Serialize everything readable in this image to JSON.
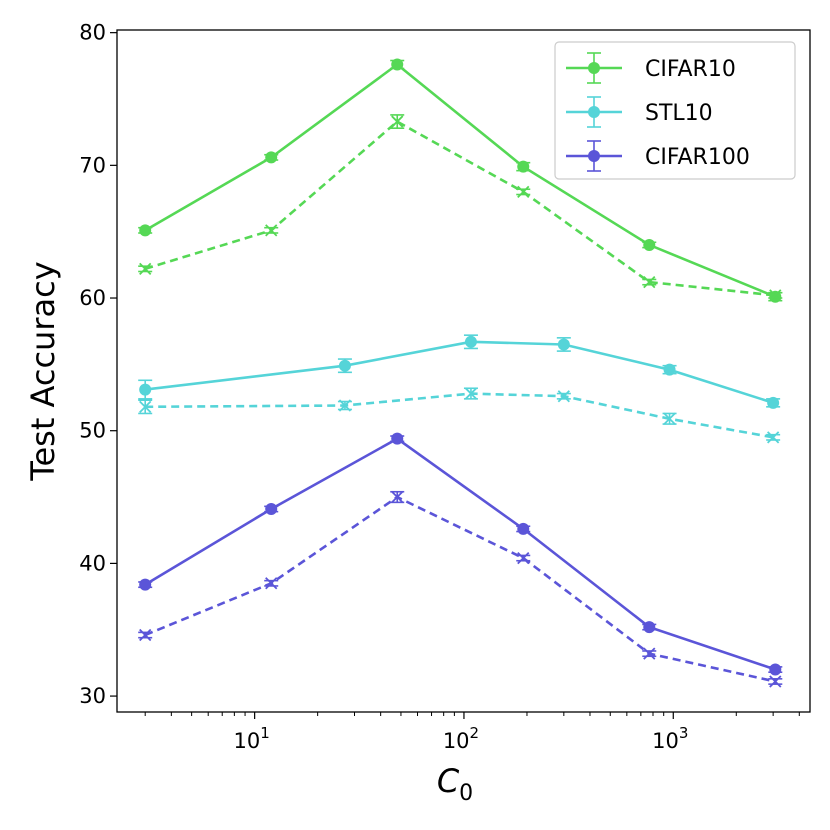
{
  "chart_data": {
    "type": "line",
    "xscale": "log",
    "xlim": [
      2.2,
      4500
    ],
    "ylim": [
      28.8,
      80.2
    ],
    "xlabel_main": "C",
    "xlabel_sub": "0",
    "ylabel": "Test Accuracy",
    "grid": false,
    "legend_position": "top-right",
    "x_ticks": [
      {
        "value": 10,
        "exp": "1"
      },
      {
        "value": 100,
        "exp": "2"
      },
      {
        "value": 1000,
        "exp": "3"
      }
    ],
    "x_tick_base": "10",
    "y_ticks": [
      30,
      40,
      50,
      60,
      70,
      80
    ],
    "series": [
      {
        "name": "CIFAR10",
        "color": "#55d855",
        "style": "solid",
        "marker": "circle",
        "x": [
          3,
          12,
          48,
          192,
          768,
          3072
        ],
        "y": [
          65.1,
          70.6,
          77.6,
          69.9,
          64.0,
          60.1
        ],
        "err": [
          0.2,
          0.2,
          0.3,
          0.3,
          0.2,
          0.3
        ]
      },
      {
        "name": "CIFAR10 (dashed)",
        "color": "#55d855",
        "style": "dashed",
        "marker": "x",
        "x": [
          3,
          12,
          48,
          192,
          768,
          3072
        ],
        "y": [
          62.2,
          65.1,
          73.3,
          68.0,
          61.2,
          60.2
        ],
        "err": [
          0.2,
          0.2,
          0.5,
          0.2,
          0.2,
          0.2
        ]
      },
      {
        "name": "STL10",
        "color": "#55d4d8",
        "style": "solid",
        "marker": "circle",
        "x": [
          3,
          27,
          108,
          300,
          960,
          3000
        ],
        "y": [
          53.1,
          54.9,
          56.7,
          56.5,
          54.6,
          52.1
        ],
        "err": [
          0.7,
          0.5,
          0.5,
          0.5,
          0.3,
          0.3
        ]
      },
      {
        "name": "STL10 (dashed)",
        "color": "#55d4d8",
        "style": "dashed",
        "marker": "x",
        "x": [
          3,
          27,
          108,
          300,
          960,
          3000
        ],
        "y": [
          51.8,
          51.9,
          52.8,
          52.6,
          50.9,
          49.5
        ],
        "err": [
          0.5,
          0.3,
          0.4,
          0.2,
          0.4,
          0.2
        ]
      },
      {
        "name": "CIFAR100",
        "color": "#5b55d8",
        "style": "solid",
        "marker": "circle",
        "x": [
          3,
          12,
          48,
          192,
          768,
          3072
        ],
        "y": [
          38.4,
          44.1,
          49.4,
          42.6,
          35.2,
          32.0
        ],
        "err": [
          0.2,
          0.2,
          0.2,
          0.2,
          0.2,
          0.2
        ]
      },
      {
        "name": "CIFAR100 (dashed)",
        "color": "#5b55d8",
        "style": "dashed",
        "marker": "x",
        "x": [
          3,
          12,
          48,
          192,
          768,
          3072
        ],
        "y": [
          34.6,
          38.5,
          45.0,
          40.4,
          33.2,
          31.1
        ],
        "err": [
          0.2,
          0.2,
          0.4,
          0.2,
          0.2,
          0.2
        ]
      }
    ],
    "legend": [
      {
        "label": "CIFAR10",
        "color": "#55d855"
      },
      {
        "label": "STL10",
        "color": "#55d4d8"
      },
      {
        "label": "CIFAR100",
        "color": "#5b55d8"
      }
    ]
  }
}
